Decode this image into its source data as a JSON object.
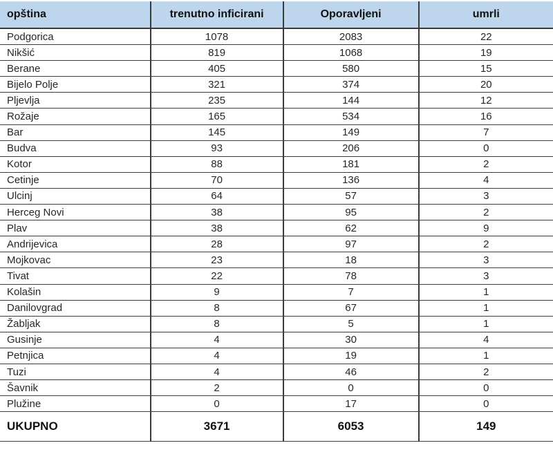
{
  "chart_data": {
    "type": "table",
    "columns": [
      "opština",
      "trenutno inficirani",
      "Oporavljeni",
      "umrli"
    ],
    "rows": [
      [
        "Podgorica",
        1078,
        2083,
        22
      ],
      [
        "Nikšić",
        819,
        1068,
        19
      ],
      [
        "Berane",
        405,
        580,
        15
      ],
      [
        "Bijelo Polje",
        321,
        374,
        20
      ],
      [
        "Pljevlja",
        235,
        144,
        12
      ],
      [
        "Rožaje",
        165,
        534,
        16
      ],
      [
        "Bar",
        145,
        149,
        7
      ],
      [
        "Budva",
        93,
        206,
        0
      ],
      [
        "Kotor",
        88,
        181,
        2
      ],
      [
        "Cetinje",
        70,
        136,
        4
      ],
      [
        "Ulcinj",
        64,
        57,
        3
      ],
      [
        "Herceg Novi",
        38,
        95,
        2
      ],
      [
        "Plav",
        38,
        62,
        9
      ],
      [
        "Andrijevica",
        28,
        97,
        2
      ],
      [
        "Mojkovac",
        23,
        18,
        3
      ],
      [
        "Tivat",
        22,
        78,
        3
      ],
      [
        "Kolašin",
        9,
        7,
        1
      ],
      [
        "Danilovgrad",
        8,
        67,
        1
      ],
      [
        "Žabljak",
        8,
        5,
        1
      ],
      [
        "Gusinje",
        4,
        30,
        4
      ],
      [
        "Petnjica",
        4,
        19,
        1
      ],
      [
        "Tuzi",
        4,
        46,
        2
      ],
      [
        "Šavnik",
        2,
        0,
        0
      ],
      [
        "Plužine",
        0,
        17,
        0
      ]
    ],
    "total_row": [
      "UKUPNO",
      3671,
      6053,
      149
    ],
    "colors": {
      "header_bg": "#bdd6ee",
      "border": "#3a3a3a",
      "text": "#262626"
    }
  }
}
